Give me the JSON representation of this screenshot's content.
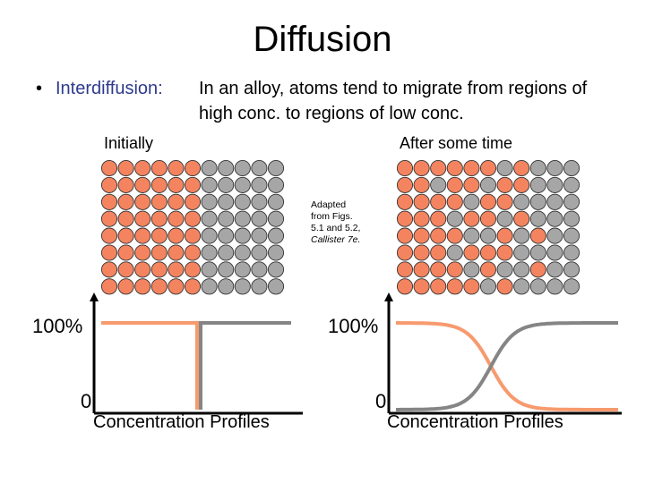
{
  "slide": {
    "title": "Diffusion",
    "bullet": {
      "term": "Interdiffusion:",
      "line1": "In an alloy, atoms tend to migrate from regions of",
      "line2": "high conc. to regions of low conc."
    }
  },
  "panels": {
    "initial": {
      "label": "Initially"
    },
    "after": {
      "label": "After some time"
    }
  },
  "credit": {
    "lines": [
      "Adapted",
      "from Figs.",
      "5.1 and 5.2,"
    ],
    "italic_line": "Callister 7e."
  },
  "profiles": {
    "y_top_label": "100%",
    "y_bottom_label": "0",
    "x_label": "Concentration Profiles"
  },
  "colors": {
    "orange_atom": "#f4845f",
    "gray_atom": "#a6a6a6",
    "orange_curve": "#f79a6e",
    "gray_curve": "#858585"
  },
  "atom_grids": {
    "rows": 8,
    "cols": 11,
    "initial": [
      "OOOOOOGGGGG",
      "OOOOOOGGGGG",
      "OOOOOOGGGGG",
      "OOOOOOGGGGG",
      "OOOOOOGGGGG",
      "OOOOOOGGGGG",
      "OOOOOOGGGGG",
      "OOOOOOGGGGG"
    ],
    "after": [
      "OOOOOOGOGGG",
      "OOGOOGOOGGG",
      "OOOOGOOGGGG",
      "OOOGOOGOGGG",
      "OOOOGGOGOGG",
      "OOOGOOOGGGG",
      "OOOOGOGGOGG",
      "OOOOOGOGGGG"
    ]
  }
}
